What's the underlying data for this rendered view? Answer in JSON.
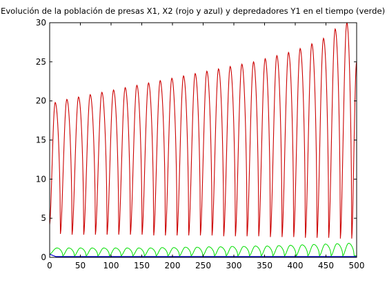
{
  "chart_data": {
    "type": "line",
    "title": "Evolución de la población de presas X1, X2 (rojo y azul) y depredadores Y1 en el tiempo (verde)",
    "xlabel": "",
    "ylabel": "",
    "xlim": [
      0,
      500
    ],
    "ylim": [
      0,
      30
    ],
    "grid": false,
    "legend": "none",
    "x_ticks": [
      "0",
      "50",
      "100",
      "150",
      "200",
      "250",
      "300",
      "350",
      "400",
      "450",
      "500"
    ],
    "y_ticks": [
      "0",
      "5",
      "10",
      "15",
      "20",
      "25",
      "30"
    ],
    "series": [
      {
        "color": "#cc0000",
        "description_values": {
          "peaks_x": [
            9,
            28,
            47,
            66,
            85,
            104,
            123,
            142,
            161,
            180,
            199,
            218,
            237,
            256,
            275,
            294,
            313,
            332,
            351,
            370,
            389,
            408,
            427,
            446,
            465,
            484
          ],
          "peaks_y": [
            19.8,
            20.2,
            20.5,
            20.8,
            21.1,
            21.4,
            21.7,
            22.0,
            22.3,
            22.6,
            22.9,
            23.2,
            23.5,
            23.8,
            24.1,
            24.4,
            24.7,
            25.0,
            25.4,
            25.8,
            26.2,
            26.7,
            27.3,
            28.0,
            29.2,
            30.0
          ],
          "troughs_y": [
            3.0,
            2.9,
            2.9,
            2.9,
            2.9,
            2.9,
            2.9,
            2.9,
            2.8,
            2.8,
            2.8,
            2.8,
            2.8,
            2.8,
            2.7,
            2.7,
            2.7,
            2.7,
            2.6,
            2.6,
            2.6,
            2.5,
            2.5,
            2.5,
            2.4,
            2.4
          ],
          "start_y": 4.2,
          "end_x": 500,
          "end_y": 25.0
        }
      },
      {
        "color": "#00dd00",
        "description_values": {
          "peaks_x": [
            12,
            31,
            50,
            69,
            88,
            107,
            126,
            145,
            164,
            183,
            202,
            221,
            240,
            259,
            278,
            297,
            316,
            335,
            354,
            373,
            392,
            411,
            430,
            449,
            468,
            487
          ],
          "peaks_y": [
            1.2,
            1.2,
            1.2,
            1.2,
            1.2,
            1.2,
            1.2,
            1.2,
            1.2,
            1.25,
            1.25,
            1.3,
            1.3,
            1.35,
            1.35,
            1.4,
            1.4,
            1.45,
            1.45,
            1.5,
            1.55,
            1.6,
            1.65,
            1.7,
            1.75,
            1.8
          ],
          "base_y": 0.2,
          "start_y": 0.4
        }
      },
      {
        "color": "#0000cc",
        "description_values": {
          "level_y": 0.1,
          "start_y": 0.4,
          "settle_x": 10
        }
      }
    ]
  }
}
